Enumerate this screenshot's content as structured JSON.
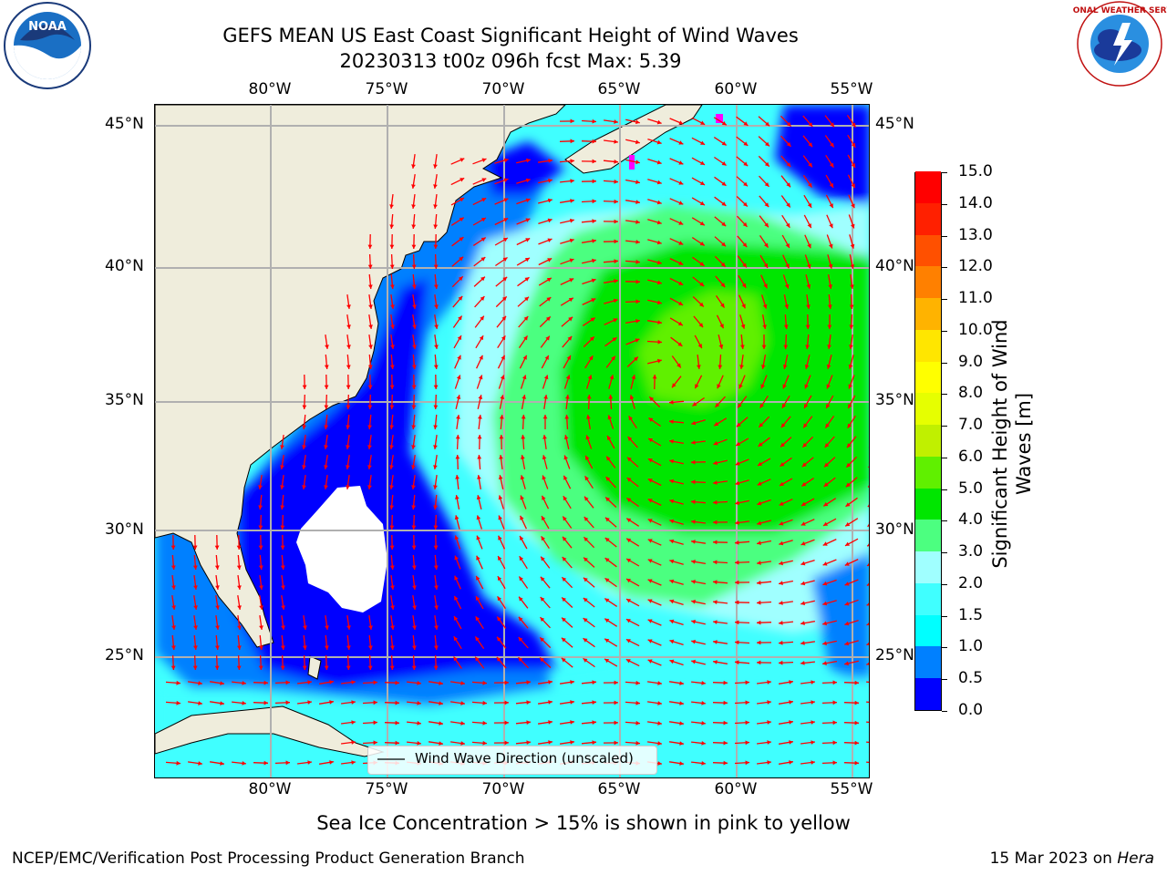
{
  "title": {
    "line1": "GEFS MEAN US East Coast Significant Height of Wind Waves",
    "line2": "20230313 t00z 096h fcst   Max: 5.39"
  },
  "logos": {
    "left": {
      "text": "NOAA",
      "icon": "noaa-logo"
    },
    "right": {
      "text": "NATIONAL WEATHER SERVICE",
      "icon": "nws-logo"
    }
  },
  "axes": {
    "lon_labels": [
      "80°W",
      "75°W",
      "70°W",
      "65°W",
      "60°W",
      "55°W"
    ],
    "lat_labels": [
      "45°N",
      "40°N",
      "35°N",
      "30°N",
      "25°N"
    ]
  },
  "legend": {
    "label": "Wind Wave Direction (unscaled)"
  },
  "colorbar": {
    "label_line1": "Significant Height of Wind",
    "label_line2": "Waves [m]",
    "ticks": [
      "0.0",
      "0.5",
      "1.0",
      "1.5",
      "2.0",
      "3.0",
      "4.0",
      "5.0",
      "6.0",
      "7.0",
      "8.0",
      "9.0",
      "10.0",
      "11.0",
      "12.0",
      "13.0",
      "14.0",
      "15.0"
    ],
    "colors": [
      "#0000ff",
      "#0080ff",
      "#00ffff",
      "#40ffff",
      "#a0ffff",
      "#4cff80",
      "#00e600",
      "#60f000",
      "#c0f000",
      "#e6ff00",
      "#ffff00",
      "#ffe600",
      "#ffb300",
      "#ff8000",
      "#ff5000",
      "#ff2000",
      "#ff0000"
    ]
  },
  "caption": "Sea Ice Concentration > 15% is shown in pink to yellow",
  "footer": {
    "left": "NCEP/EMC/Verification Post Processing Product Generation Branch",
    "right_prefix": "15 Mar 2023 on ",
    "right_host": "Hera"
  },
  "colors": {
    "land": "#efeddc",
    "arrow": "#ff0000",
    "grid": "#b0b0b0"
  }
}
